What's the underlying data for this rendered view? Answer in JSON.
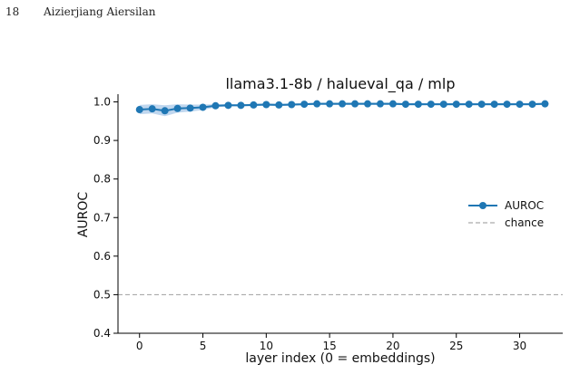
{
  "header": {
    "page_number": "18",
    "author": "Aizierjiang Aiersilan"
  },
  "colors": {
    "series": "#1f77b4",
    "band": "#aac8e8",
    "chance": "#aaaaaa",
    "axis": "#000000"
  },
  "chart_data": {
    "type": "line",
    "title": "llama3.1-8b / halueval_qa / mlp",
    "xlabel": "layer index (0 = embeddings)",
    "ylabel": "AUROC",
    "xlim": [
      -1.7,
      33.4
    ],
    "ylim": [
      0.4,
      1.02
    ],
    "xticks": [
      0,
      5,
      10,
      15,
      20,
      25,
      30
    ],
    "yticks": [
      0.4,
      0.5,
      0.6,
      0.7,
      0.8,
      0.9,
      1.0
    ],
    "ytick_labels": [
      "0.4",
      "0.5",
      "0.6",
      "0.7",
      "0.8",
      "0.9",
      "1.0"
    ],
    "grid": false,
    "legend_position": "center-right",
    "series": [
      {
        "name": "AUROC",
        "x": [
          0,
          1,
          2,
          3,
          4,
          5,
          6,
          7,
          8,
          9,
          10,
          11,
          12,
          13,
          14,
          15,
          16,
          17,
          18,
          19,
          20,
          21,
          22,
          23,
          24,
          25,
          26,
          27,
          28,
          29,
          30,
          31,
          32
        ],
        "values": [
          0.98,
          0.982,
          0.977,
          0.983,
          0.984,
          0.986,
          0.99,
          0.991,
          0.991,
          0.992,
          0.993,
          0.992,
          0.993,
          0.994,
          0.995,
          0.995,
          0.995,
          0.995,
          0.995,
          0.995,
          0.995,
          0.994,
          0.994,
          0.994,
          0.994,
          0.994,
          0.994,
          0.994,
          0.994,
          0.994,
          0.994,
          0.994,
          0.995
        ],
        "band_lower": [
          0.968,
          0.97,
          0.963,
          0.972,
          0.975,
          0.979,
          0.986,
          0.988,
          0.988,
          0.989,
          0.99,
          0.989,
          0.99,
          0.991,
          0.992,
          0.992,
          0.992,
          0.992,
          0.992,
          0.992,
          0.992,
          0.991,
          0.991,
          0.991,
          0.991,
          0.991,
          0.991,
          0.991,
          0.991,
          0.991,
          0.991,
          0.991,
          0.992
        ],
        "band_upper": [
          0.992,
          0.994,
          0.991,
          0.994,
          0.993,
          0.993,
          0.994,
          0.994,
          0.994,
          0.995,
          0.996,
          0.995,
          0.996,
          0.997,
          0.998,
          0.998,
          0.998,
          0.998,
          0.998,
          0.998,
          0.998,
          0.997,
          0.997,
          0.997,
          0.997,
          0.997,
          0.997,
          0.997,
          0.997,
          0.997,
          0.997,
          0.997,
          0.998
        ]
      }
    ],
    "reference_line": {
      "name": "chance",
      "y": 0.5
    }
  }
}
